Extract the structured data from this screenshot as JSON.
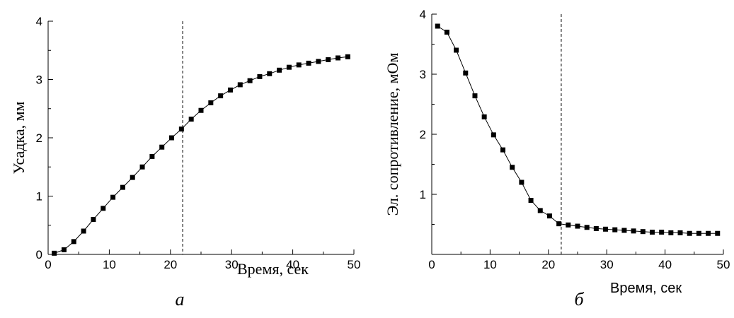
{
  "chart_data": [
    {
      "type": "line",
      "caption": "а",
      "xlabel": "Время, сек",
      "ylabel": "Усадка, мм",
      "xlim": [
        0,
        50
      ],
      "ylim": [
        0,
        4
      ],
      "xticks": [
        0,
        10,
        20,
        30,
        40,
        50
      ],
      "yticks": [
        0,
        1,
        2,
        3,
        4
      ],
      "marker": "square",
      "vline_x": 22,
      "x": [
        1,
        2.6,
        4.2,
        5.8,
        7.4,
        9,
        10.6,
        12.2,
        13.8,
        15.4,
        17,
        18.6,
        20.2,
        21.8,
        23.4,
        25,
        26.6,
        28.2,
        29.8,
        31.4,
        33,
        34.6,
        36.2,
        37.8,
        39.4,
        41,
        42.6,
        44.2,
        45.8,
        47.4,
        49
      ],
      "y": [
        0.02,
        0.08,
        0.22,
        0.4,
        0.6,
        0.79,
        0.98,
        1.15,
        1.32,
        1.5,
        1.68,
        1.84,
        2.0,
        2.15,
        2.32,
        2.47,
        2.6,
        2.72,
        2.82,
        2.91,
        2.98,
        3.05,
        3.1,
        3.16,
        3.21,
        3.25,
        3.28,
        3.31,
        3.34,
        3.37,
        3.39
      ]
    },
    {
      "type": "line",
      "caption": "б",
      "xlabel": "Время, сек",
      "ylabel": "Эл. сопротивление, мОм",
      "xlim": [
        0,
        50
      ],
      "ylim": [
        0,
        4
      ],
      "xticks": [
        0,
        10,
        20,
        30,
        40,
        50
      ],
      "yticks": [
        1,
        2,
        3,
        4
      ],
      "marker": "square",
      "vline_x": 22.2,
      "x": [
        1,
        2.6,
        4.2,
        5.8,
        7.4,
        9,
        10.6,
        12.2,
        13.8,
        15.4,
        17,
        18.6,
        20.2,
        21.8,
        23.4,
        25,
        26.6,
        28.2,
        29.8,
        31.4,
        33,
        34.6,
        36.2,
        37.8,
        39.4,
        41,
        42.6,
        44.2,
        45.8,
        47.4,
        49
      ],
      "y": [
        3.8,
        3.7,
        3.4,
        3.02,
        2.64,
        2.29,
        1.99,
        1.74,
        1.45,
        1.2,
        0.9,
        0.73,
        0.64,
        0.51,
        0.49,
        0.47,
        0.45,
        0.43,
        0.42,
        0.41,
        0.4,
        0.39,
        0.38,
        0.37,
        0.37,
        0.36,
        0.36,
        0.35,
        0.35,
        0.35,
        0.35
      ]
    }
  ]
}
